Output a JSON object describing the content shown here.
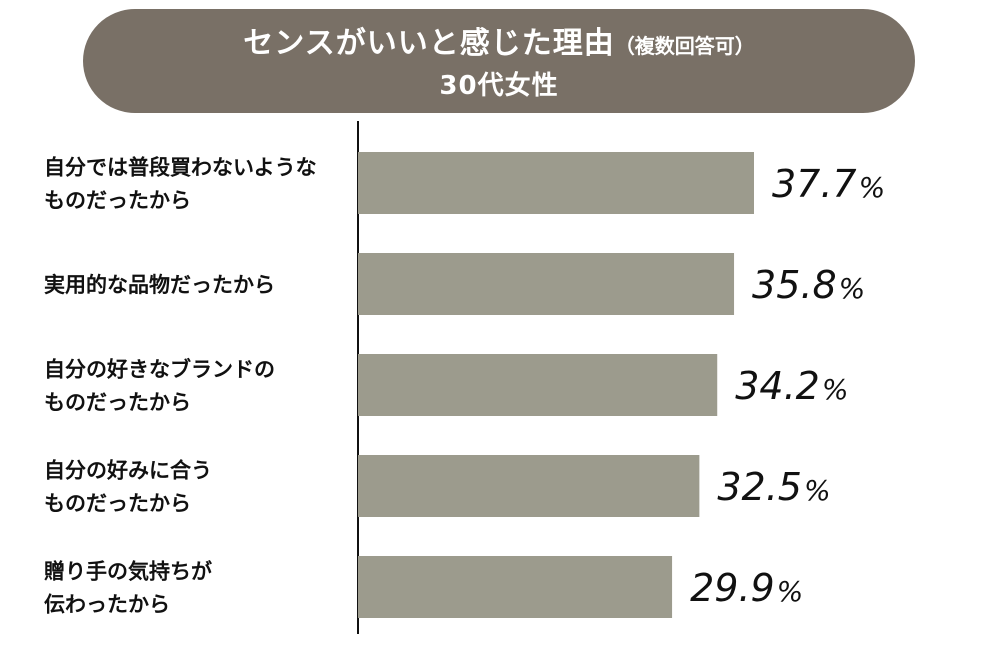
{
  "title": {
    "main": "センスがいいと感じた理由",
    "note": "（複数回答可）",
    "subtitle": "30代女性"
  },
  "colors": {
    "banner": "#797066",
    "bar": "#9c9b8d",
    "axis": "#111111"
  },
  "chart_data": {
    "type": "bar",
    "orientation": "horizontal",
    "categories": [
      [
        "自分では普段買わないような",
        "ものだったから"
      ],
      [
        "実用的な品物だったから"
      ],
      [
        "自分の好きなブランドの",
        "ものだったから"
      ],
      [
        "自分の好みに合う",
        "ものだったから"
      ],
      [
        "贈り手の気持ちが",
        "伝わったから"
      ]
    ],
    "values": [
      37.7,
      35.8,
      34.2,
      32.5,
      29.9
    ],
    "value_labels": [
      "37.7",
      "35.8",
      "34.2",
      "32.5",
      "29.9"
    ],
    "unit": "%",
    "grid": false
  }
}
